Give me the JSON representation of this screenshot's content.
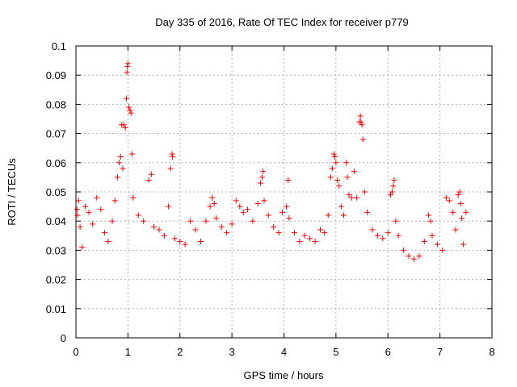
{
  "chart_data": {
    "type": "scatter",
    "title": "Day 335 of 2016, Rate Of TEC Index for receiver p779",
    "xlabel": "GPS time / hours",
    "ylabel": "ROTI / TECUs",
    "xlim": [
      0,
      8
    ],
    "ylim": [
      0,
      0.1
    ],
    "xticks": [
      "0",
      "1",
      "2",
      "3",
      "4",
      "5",
      "6",
      "7",
      "8"
    ],
    "yticks": [
      "0",
      "0.01",
      "0.02",
      "0.03",
      "0.04",
      "0.05",
      "0.06",
      "0.07",
      "0.08",
      "0.09",
      "0.1"
    ],
    "grid": true,
    "marker": "+",
    "color": "#ff0000",
    "series": [
      {
        "name": "ROTI",
        "points": [
          [
            0.02,
            0.044
          ],
          [
            0.03,
            0.042
          ],
          [
            0.05,
            0.047
          ],
          [
            0.08,
            0.038
          ],
          [
            0.12,
            0.031
          ],
          [
            0.18,
            0.045
          ],
          [
            0.25,
            0.043
          ],
          [
            0.32,
            0.039
          ],
          [
            0.4,
            0.048
          ],
          [
            0.48,
            0.044
          ],
          [
            0.55,
            0.036
          ],
          [
            0.62,
            0.033
          ],
          [
            0.7,
            0.04
          ],
          [
            0.75,
            0.047
          ],
          [
            0.8,
            0.055
          ],
          [
            0.83,
            0.06
          ],
          [
            0.86,
            0.062
          ],
          [
            0.88,
            0.073
          ],
          [
            0.9,
            0.058
          ],
          [
            0.92,
            0.073
          ],
          [
            0.95,
            0.072
          ],
          [
            0.97,
            0.082
          ],
          [
            0.98,
            0.091
          ],
          [
            0.99,
            0.093
          ],
          [
            1.0,
            0.094
          ],
          [
            1.02,
            0.079
          ],
          [
            1.04,
            0.078
          ],
          [
            1.06,
            0.077
          ],
          [
            1.08,
            0.063
          ],
          [
            1.1,
            0.048
          ],
          [
            1.2,
            0.042
          ],
          [
            1.3,
            0.04
          ],
          [
            1.4,
            0.054
          ],
          [
            1.45,
            0.056
          ],
          [
            1.5,
            0.038
          ],
          [
            1.6,
            0.037
          ],
          [
            1.7,
            0.035
          ],
          [
            1.78,
            0.045
          ],
          [
            1.82,
            0.058
          ],
          [
            1.85,
            0.063
          ],
          [
            1.86,
            0.062
          ],
          [
            1.9,
            0.034
          ],
          [
            2.0,
            0.033
          ],
          [
            2.1,
            0.032
          ],
          [
            2.2,
            0.04
          ],
          [
            2.3,
            0.037
          ],
          [
            2.4,
            0.033
          ],
          [
            2.5,
            0.04
          ],
          [
            2.58,
            0.045
          ],
          [
            2.62,
            0.048
          ],
          [
            2.66,
            0.046
          ],
          [
            2.7,
            0.041
          ],
          [
            2.8,
            0.038
          ],
          [
            2.9,
            0.036
          ],
          [
            3.0,
            0.039
          ],
          [
            3.08,
            0.047
          ],
          [
            3.15,
            0.045
          ],
          [
            3.22,
            0.043
          ],
          [
            3.3,
            0.044
          ],
          [
            3.4,
            0.04
          ],
          [
            3.5,
            0.046
          ],
          [
            3.55,
            0.053
          ],
          [
            3.58,
            0.055
          ],
          [
            3.6,
            0.057
          ],
          [
            3.62,
            0.047
          ],
          [
            3.7,
            0.042
          ],
          [
            3.8,
            0.038
          ],
          [
            3.9,
            0.036
          ],
          [
            3.97,
            0.043
          ],
          [
            4.05,
            0.045
          ],
          [
            4.08,
            0.054
          ],
          [
            4.1,
            0.041
          ],
          [
            4.2,
            0.036
          ],
          [
            4.3,
            0.033
          ],
          [
            4.4,
            0.035
          ],
          [
            4.5,
            0.034
          ],
          [
            4.6,
            0.033
          ],
          [
            4.7,
            0.037
          ],
          [
            4.78,
            0.036
          ],
          [
            4.85,
            0.042
          ],
          [
            4.9,
            0.055
          ],
          [
            4.93,
            0.058
          ],
          [
            4.96,
            0.063
          ],
          [
            4.98,
            0.062
          ],
          [
            5.0,
            0.06
          ],
          [
            5.03,
            0.054
          ],
          [
            5.06,
            0.052
          ],
          [
            5.1,
            0.045
          ],
          [
            5.15,
            0.042
          ],
          [
            5.2,
            0.06
          ],
          [
            5.22,
            0.055
          ],
          [
            5.25,
            0.049
          ],
          [
            5.3,
            0.048
          ],
          [
            5.35,
            0.057
          ],
          [
            5.4,
            0.048
          ],
          [
            5.45,
            0.074
          ],
          [
            5.47,
            0.076
          ],
          [
            5.48,
            0.074
          ],
          [
            5.5,
            0.073
          ],
          [
            5.52,
            0.068
          ],
          [
            5.55,
            0.05
          ],
          [
            5.6,
            0.043
          ],
          [
            5.7,
            0.037
          ],
          [
            5.8,
            0.035
          ],
          [
            5.9,
            0.034
          ],
          [
            6.0,
            0.036
          ],
          [
            6.05,
            0.049
          ],
          [
            6.08,
            0.05
          ],
          [
            6.1,
            0.052
          ],
          [
            6.12,
            0.054
          ],
          [
            6.15,
            0.04
          ],
          [
            6.2,
            0.035
          ],
          [
            6.3,
            0.03
          ],
          [
            6.4,
            0.028
          ],
          [
            6.5,
            0.027
          ],
          [
            6.6,
            0.028
          ],
          [
            6.7,
            0.033
          ],
          [
            6.78,
            0.042
          ],
          [
            6.82,
            0.04
          ],
          [
            6.85,
            0.035
          ],
          [
            6.95,
            0.032
          ],
          [
            7.05,
            0.03
          ],
          [
            7.12,
            0.048
          ],
          [
            7.18,
            0.047
          ],
          [
            7.25,
            0.043
          ],
          [
            7.3,
            0.037
          ],
          [
            7.35,
            0.049
          ],
          [
            7.38,
            0.05
          ],
          [
            7.4,
            0.046
          ],
          [
            7.42,
            0.041
          ],
          [
            7.45,
            0.032
          ],
          [
            7.5,
            0.043
          ]
        ]
      }
    ]
  }
}
